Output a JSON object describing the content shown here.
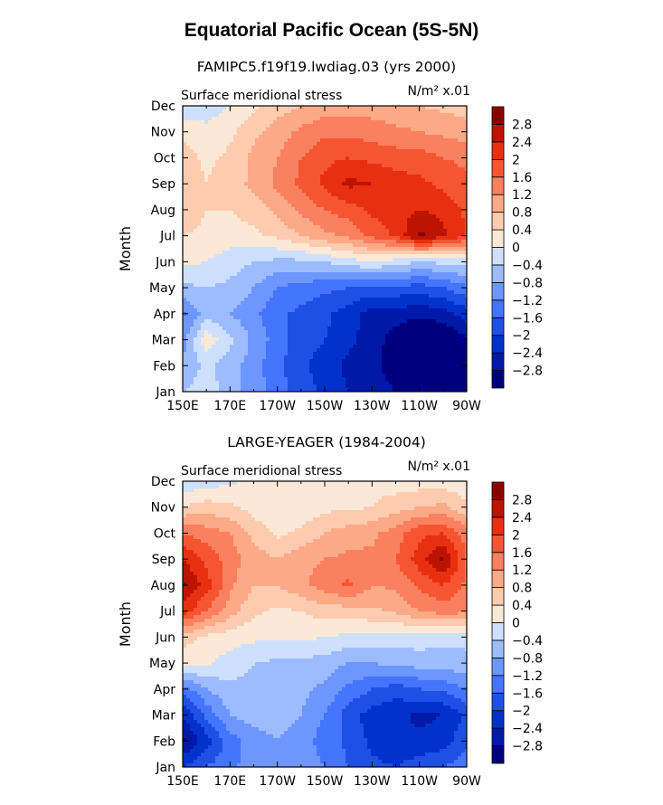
{
  "figure": {
    "title": "Equatorial Pacific Ocean (5S-5N)"
  },
  "colors": {
    "levels": [
      -2.8,
      -2.4,
      -2.0,
      -1.6,
      -1.2,
      -0.8,
      -0.4,
      0,
      0.4,
      0.8,
      1.2,
      1.6,
      2.0,
      2.4,
      2.8
    ],
    "fills": [
      "#00007f",
      "#0019a8",
      "#0231cc",
      "#1f50e6",
      "#4574ff",
      "#6d96ff",
      "#9dbcff",
      "#cde0ff",
      "#fce8d7",
      "#fdcbaf",
      "#fca987",
      "#fb8060",
      "#f65532",
      "#e83010",
      "#bc1400",
      "#8a0000"
    ]
  },
  "chart_data": [
    {
      "type": "heatmap",
      "title": "FAMIPC5.f19f19.lwdiag.03 (yrs 2000)",
      "subtitle_left": "Surface meridional stress",
      "subtitle_right": "N/m² x.01",
      "xlabel": "",
      "ylabel": "Month",
      "x": [
        150,
        160,
        170,
        180,
        190,
        200,
        210,
        220,
        230,
        240,
        250,
        260,
        270
      ],
      "xlim": [
        150,
        270
      ],
      "xticks": [
        150,
        170,
        190,
        210,
        230,
        250,
        270
      ],
      "xtick_labels": [
        "150E",
        "170E",
        "170W",
        "150W",
        "130W",
        "110W",
        "90W"
      ],
      "yticks": [
        "Jan",
        "Feb",
        "Mar",
        "Apr",
        "May",
        "Jun",
        "Jul",
        "Aug",
        "Sep",
        "Oct",
        "Nov",
        "Dec"
      ],
      "colorbar_labels": [
        "2.8",
        "2.4",
        "2",
        "1.6",
        "1.2",
        "0.8",
        "0.4",
        "0",
        "−0.4",
        "−0.8",
        "−1.2",
        "−1.6",
        "−2",
        "−2.4",
        "−2.8"
      ],
      "values": [
        [
          -0.4,
          -0.2,
          -0.6,
          -1.0,
          -1.4,
          -1.8,
          -2.1,
          -2.4,
          -2.6,
          -2.8,
          -3.0,
          -3.1,
          -2.8
        ],
        [
          -0.7,
          -0.3,
          -0.6,
          -1.0,
          -1.5,
          -1.9,
          -2.2,
          -2.5,
          -2.7,
          -3.0,
          -3.3,
          -3.3,
          -3.0
        ],
        [
          -1.0,
          0.3,
          -0.3,
          -0.9,
          -1.4,
          -1.8,
          -2.0,
          -2.3,
          -2.6,
          -3.0,
          -3.3,
          -3.2,
          -2.9
        ],
        [
          -1.3,
          -0.6,
          -0.8,
          -1.1,
          -1.5,
          -1.7,
          -1.9,
          -2.2,
          -2.6,
          -2.6,
          -2.7,
          -2.6,
          -2.2
        ],
        [
          -0.5,
          -0.4,
          -0.5,
          -0.8,
          -1.2,
          -1.4,
          -1.5,
          -1.6,
          -1.7,
          -1.7,
          -1.8,
          -1.6,
          -1.3
        ],
        [
          0.1,
          0.0,
          -0.2,
          -0.4,
          -0.5,
          -0.5,
          -0.4,
          -0.2,
          0.0,
          -0.2,
          -0.4,
          -0.3,
          -0.2
        ],
        [
          0.4,
          0.3,
          0.2,
          0.3,
          0.5,
          0.8,
          1.1,
          1.3,
          1.7,
          2.1,
          2.9,
          2.5,
          2.0
        ],
        [
          0.7,
          0.4,
          0.4,
          0.6,
          0.9,
          1.3,
          1.6,
          1.8,
          2.1,
          2.2,
          2.4,
          2.3,
          1.9
        ],
        [
          0.8,
          0.4,
          0.6,
          0.9,
          1.3,
          1.7,
          2.1,
          2.5,
          2.4,
          2.2,
          2.1,
          1.9,
          1.7
        ],
        [
          0.6,
          0.3,
          0.5,
          0.9,
          1.2,
          1.6,
          1.9,
          2.0,
          1.9,
          1.8,
          1.8,
          1.6,
          1.5
        ],
        [
          0.3,
          0.1,
          0.3,
          0.7,
          1.0,
          1.3,
          1.5,
          1.5,
          1.4,
          1.3,
          1.2,
          1.1,
          1.0
        ],
        [
          -0.3,
          -0.2,
          0.0,
          0.3,
          0.6,
          0.8,
          1.0,
          1.0,
          1.0,
          0.9,
          0.8,
          0.7,
          0.6
        ]
      ]
    },
    {
      "type": "heatmap",
      "title": "LARGE-YEAGER (1984-2004)",
      "subtitle_left": "Surface meridional stress",
      "subtitle_right": "N/m² x.01",
      "xlabel": "",
      "ylabel": "Month",
      "x": [
        150,
        160,
        170,
        180,
        190,
        200,
        210,
        220,
        230,
        240,
        250,
        260,
        270
      ],
      "xlim": [
        150,
        270
      ],
      "xticks": [
        150,
        170,
        190,
        210,
        230,
        250,
        270
      ],
      "xtick_labels": [
        "150E",
        "170E",
        "170W",
        "150W",
        "130W",
        "110W",
        "90W"
      ],
      "yticks": [
        "Jan",
        "Feb",
        "Mar",
        "Apr",
        "May",
        "Jun",
        "Jul",
        "Aug",
        "Sep",
        "Oct",
        "Nov",
        "Dec"
      ],
      "colorbar_labels": [
        "2.8",
        "2.4",
        "2",
        "1.6",
        "1.2",
        "0.8",
        "0.4",
        "0",
        "−0.4",
        "−0.8",
        "−1.2",
        "−1.6",
        "−2",
        "−2.4",
        "−2.8"
      ],
      "values": [
        [
          -2.0,
          -1.6,
          -1.3,
          -1.0,
          -0.8,
          -0.9,
          -1.2,
          -1.6,
          -1.9,
          -2.0,
          -1.8,
          -1.6,
          -1.4
        ],
        [
          -2.9,
          -2.2,
          -1.4,
          -1.0,
          -0.8,
          -1.0,
          -1.4,
          -1.7,
          -2.1,
          -2.3,
          -2.3,
          -2.2,
          -1.7
        ],
        [
          -2.4,
          -1.5,
          -0.8,
          -0.6,
          -0.6,
          -0.8,
          -1.2,
          -1.8,
          -2.2,
          -2.3,
          -2.5,
          -2.4,
          -1.9
        ],
        [
          -1.4,
          -0.8,
          -0.5,
          -0.5,
          -0.6,
          -0.7,
          -0.9,
          -1.3,
          -1.6,
          -1.8,
          -1.6,
          -1.5,
          -1.2
        ],
        [
          0.1,
          0.1,
          -0.2,
          -0.4,
          -0.5,
          -0.5,
          -0.6,
          -0.8,
          -0.8,
          -0.7,
          -0.6,
          -0.6,
          -0.5
        ],
        [
          0.6,
          0.3,
          0.2,
          0.1,
          0.1,
          0.1,
          0.0,
          -0.1,
          -0.1,
          -0.2,
          -0.2,
          -0.3,
          -0.3
        ],
        [
          2.2,
          1.6,
          1.0,
          0.5,
          0.3,
          0.4,
          0.6,
          0.6,
          0.7,
          0.9,
          1.2,
          1.4,
          1.3
        ],
        [
          2.9,
          2.2,
          1.3,
          0.8,
          0.8,
          1.1,
          1.4,
          1.7,
          1.2,
          1.3,
          1.7,
          2.0,
          1.5
        ],
        [
          2.4,
          1.9,
          1.4,
          1.0,
          0.8,
          1.1,
          1.2,
          1.3,
          1.3,
          1.6,
          2.2,
          2.9,
          1.6
        ],
        [
          1.6,
          1.4,
          1.2,
          0.7,
          0.3,
          0.5,
          0.8,
          1.0,
          1.1,
          1.4,
          1.9,
          2.0,
          1.4
        ],
        [
          0.4,
          0.6,
          0.5,
          0.2,
          0.1,
          0.1,
          0.3,
          0.3,
          0.4,
          0.6,
          0.8,
          0.9,
          0.5
        ],
        [
          -0.3,
          -0.2,
          -0.1,
          0.1,
          0.1,
          0.3,
          0.3,
          0.4,
          0.3,
          0.2,
          0.2,
          0.2,
          0.1
        ]
      ]
    }
  ]
}
